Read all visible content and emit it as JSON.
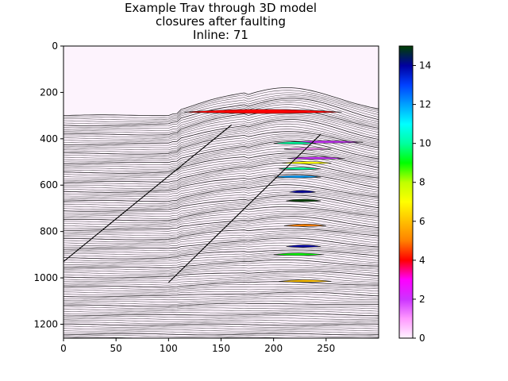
{
  "chart_data": {
    "type": "heatmap",
    "title_lines": [
      "Example Trav through 3D model",
      "closures after faulting",
      "Inline: 71"
    ],
    "xlabel": "",
    "ylabel": "",
    "xlim": [
      0,
      300
    ],
    "ylim": [
      1260,
      0
    ],
    "x_ticks": [
      0,
      50,
      100,
      150,
      200,
      250
    ],
    "y_ticks": [
      0,
      200,
      400,
      600,
      800,
      1000,
      1200
    ],
    "colorbar": {
      "range": [
        0,
        15
      ],
      "ticks": [
        0,
        2,
        4,
        6,
        8,
        10,
        12,
        14
      ],
      "colors": [
        "#fff4ff",
        "#ff99ff",
        "#cc33ff",
        "#ff00ff",
        "#ff0000",
        "#ff8000",
        "#ffc000",
        "#ffff00",
        "#c0ff00",
        "#00ff00",
        "#00ffa0",
        "#00ffff",
        "#00a0ff",
        "#0040ff",
        "#0000a0",
        "#004000"
      ]
    },
    "background_top_value": 0,
    "faults": [
      {
        "x1": 0,
        "y1": 930,
        "x2": 160,
        "y2": 340
      },
      {
        "x1": 100,
        "y1": 1020,
        "x2": 245,
        "y2": 380
      }
    ],
    "closures": [
      {
        "x_start": 115,
        "x_end": 265,
        "y": 285,
        "value": 4
      },
      {
        "x_start": 212,
        "x_end": 285,
        "y": 415,
        "value": 2
      },
      {
        "x_start": 210,
        "x_end": 255,
        "y": 445,
        "value": 1
      },
      {
        "x_start": 200,
        "x_end": 240,
        "y": 420,
        "value": 10
      },
      {
        "x_start": 213,
        "x_end": 268,
        "y": 485,
        "value": 2
      },
      {
        "x_start": 208,
        "x_end": 255,
        "y": 505,
        "value": 7
      },
      {
        "x_start": 205,
        "x_end": 245,
        "y": 530,
        "value": 10
      },
      {
        "x_start": 200,
        "x_end": 245,
        "y": 565,
        "value": 12
      },
      {
        "x_start": 215,
        "x_end": 240,
        "y": 630,
        "value": 14
      },
      {
        "x_start": 212,
        "x_end": 245,
        "y": 668,
        "value": 15
      },
      {
        "x_start": 210,
        "x_end": 250,
        "y": 775,
        "value": 5
      },
      {
        "x_start": 212,
        "x_end": 245,
        "y": 865,
        "value": 14
      },
      {
        "x_start": 200,
        "x_end": 248,
        "y": 900,
        "value": 9
      },
      {
        "x_start": 205,
        "x_end": 255,
        "y": 1015,
        "value": 6
      }
    ]
  }
}
